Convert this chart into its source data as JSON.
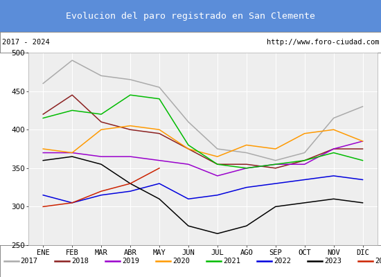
{
  "title": "Evolucion del paro registrado en San Clemente",
  "title_bg": "#5b8dd9",
  "title_color": "white",
  "subtitle_left": "2017 - 2024",
  "subtitle_right": "http://www.foro-ciudad.com",
  "months": [
    "ENE",
    "FEB",
    "MAR",
    "ABR",
    "MAY",
    "JUN",
    "JUL",
    "AGO",
    "SEP",
    "OCT",
    "NOV",
    "DIC"
  ],
  "ylim": [
    250,
    500
  ],
  "yticks": [
    250,
    300,
    350,
    400,
    450,
    500
  ],
  "series": {
    "2017": {
      "color": "#aaaaaa",
      "values": [
        460,
        490,
        470,
        465,
        455,
        410,
        375,
        370,
        360,
        370,
        415,
        430
      ]
    },
    "2018": {
      "color": "#8b2020",
      "values": [
        420,
        445,
        410,
        400,
        395,
        375,
        355,
        355,
        350,
        360,
        375,
        375
      ]
    },
    "2019": {
      "color": "#9900cc",
      "values": [
        370,
        370,
        365,
        365,
        360,
        355,
        340,
        350,
        355,
        355,
        375,
        385
      ]
    },
    "2020": {
      "color": "#ff9900",
      "values": [
        375,
        370,
        400,
        405,
        400,
        375,
        365,
        380,
        375,
        395,
        400,
        385
      ]
    },
    "2021": {
      "color": "#00bb00",
      "values": [
        415,
        425,
        420,
        445,
        440,
        380,
        355,
        350,
        355,
        360,
        370,
        360
      ]
    },
    "2022": {
      "color": "#0000dd",
      "values": [
        315,
        305,
        315,
        320,
        330,
        310,
        315,
        325,
        330,
        335,
        340,
        335
      ]
    },
    "2023": {
      "color": "#000000",
      "values": [
        360,
        365,
        355,
        330,
        310,
        275,
        265,
        275,
        300,
        305,
        310,
        305
      ]
    },
    "2024": {
      "color": "#cc2200",
      "values": [
        300,
        305,
        320,
        330,
        350,
        null,
        null,
        null,
        null,
        null,
        null,
        null
      ]
    }
  }
}
